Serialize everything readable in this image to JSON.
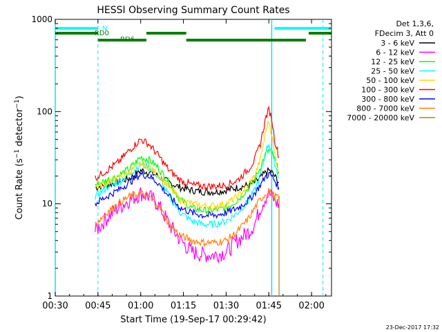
{
  "chart_data": {
    "type": "line",
    "title": "HESSI Observing Summary Count Rates",
    "xlabel": "Start Time (19-Sep-17 00:29:42)",
    "ylabel_main": "Count Rate (s",
    "ylabel_sup1": "−1",
    "ylabel_mid": " detector",
    "ylabel_sup2": "−1",
    "ylabel_end": ")",
    "y_scale": "log",
    "ylim": [
      1,
      1000
    ],
    "xlim_min": [
      30,
      127
    ],
    "x_ticks": [
      {
        "min": 30,
        "label": "00:30"
      },
      {
        "min": 45,
        "label": "00:45"
      },
      {
        "min": 60,
        "label": "01:00"
      },
      {
        "min": 75,
        "label": "01:15"
      },
      {
        "min": 90,
        "label": "01:30"
      },
      {
        "min": 105,
        "label": "01:45"
      },
      {
        "min": 120,
        "label": "02:00"
      }
    ],
    "y_ticks": [
      {
        "val": 1,
        "label": "1"
      },
      {
        "val": 10,
        "label": "10"
      },
      {
        "val": 100,
        "label": "100"
      },
      {
        "val": 1000,
        "label": "1000"
      }
    ],
    "legend_header": [
      "Det 1,3,6,",
      "FDecim 3, Att 0"
    ],
    "series": [
      {
        "name": "3 - 6 keV",
        "color": "#000000",
        "x": [
          44,
          48,
          52,
          56,
          60,
          63,
          66,
          70,
          74,
          78,
          82,
          86,
          90,
          94,
          98,
          100,
          102,
          104,
          105,
          106,
          107,
          108,
          108.5
        ],
        "y": [
          15,
          16,
          17,
          19,
          23,
          22,
          20,
          17,
          15,
          14,
          13.5,
          13.5,
          14,
          15,
          16,
          17,
          19,
          22,
          23,
          22,
          20,
          18,
          17
        ]
      },
      {
        "name": "6 - 12 keV",
        "color": "#ff00ff",
        "x": [
          44,
          48,
          52,
          56,
          60,
          63,
          66,
          70,
          74,
          78,
          82,
          86,
          90,
          94,
          98,
          100,
          102,
          104,
          105,
          106,
          107,
          108,
          108.5
        ],
        "y": [
          5,
          7,
          9,
          11,
          13,
          12,
          10,
          6,
          4,
          3,
          2.8,
          2.8,
          3,
          4,
          5,
          6,
          9,
          12,
          13,
          12,
          11,
          10,
          10
        ]
      },
      {
        "name": "12 - 25 keV",
        "color": "#00ff00",
        "x": [
          44,
          48,
          52,
          56,
          60,
          63,
          66,
          70,
          74,
          78,
          82,
          86,
          90,
          94,
          98,
          100,
          102,
          104,
          105,
          106,
          107,
          108,
          108.5
        ],
        "y": [
          16,
          18,
          20,
          24,
          32,
          30,
          25,
          17,
          11,
          9,
          8.5,
          8.5,
          9,
          11,
          15,
          18,
          25,
          35,
          38,
          36,
          30,
          25,
          22
        ]
      },
      {
        "name": "25 - 50 keV",
        "color": "#00ffff",
        "x": [
          44,
          48,
          52,
          56,
          60,
          63,
          66,
          70,
          74,
          78,
          82,
          86,
          90,
          94,
          98,
          100,
          102,
          104,
          105,
          106,
          107,
          108,
          108.5
        ],
        "y": [
          12,
          15,
          17,
          21,
          27,
          25,
          20,
          12,
          8,
          6.5,
          6,
          6,
          6.5,
          8,
          11,
          14,
          20,
          38,
          45,
          38,
          28,
          22,
          19
        ]
      },
      {
        "name": "50 - 100 keV",
        "color": "#ffd700",
        "x": [
          44,
          48,
          52,
          56,
          60,
          63,
          66,
          70,
          74,
          78,
          82,
          86,
          90,
          94,
          98,
          100,
          102,
          104,
          105,
          106,
          107,
          108,
          108.5
        ],
        "y": [
          15,
          17,
          19,
          22,
          27,
          25,
          21,
          15,
          11,
          10,
          9.5,
          9.5,
          10,
          12,
          16,
          20,
          30,
          62,
          80,
          58,
          35,
          26,
          22
        ]
      },
      {
        "name": "100 - 300 keV",
        "color": "#ff0000",
        "x": [
          44,
          48,
          52,
          56,
          60,
          63,
          66,
          70,
          74,
          78,
          82,
          86,
          90,
          94,
          98,
          100,
          102,
          104,
          105,
          106,
          107,
          108,
          108.5
        ],
        "y": [
          19,
          23,
          28,
          38,
          50,
          44,
          34,
          23,
          18,
          16,
          15.5,
          15.5,
          16,
          18,
          24,
          30,
          45,
          88,
          105,
          85,
          50,
          38,
          32
        ]
      },
      {
        "name": "300 - 800 keV",
        "color": "#0000ff",
        "x": [
          44,
          48,
          52,
          56,
          60,
          63,
          66,
          70,
          74,
          78,
          82,
          86,
          90,
          94,
          98,
          100,
          102,
          104,
          105,
          106,
          107,
          108,
          108.5
        ],
        "y": [
          10,
          12,
          14,
          17,
          21,
          20,
          17,
          12,
          9,
          8,
          7.5,
          7.5,
          8,
          9,
          11,
          13,
          16,
          20,
          21,
          20,
          18,
          16,
          15
        ]
      },
      {
        "name": "800 - 7000 keV",
        "color": "#ff8000",
        "x": [
          44,
          48,
          52,
          56,
          60,
          63,
          66,
          70,
          74,
          78,
          82,
          86,
          90,
          94,
          98,
          100,
          102,
          104,
          105,
          106,
          107,
          108,
          108.5
        ],
        "y": [
          6,
          8,
          10,
          12,
          13,
          12,
          10,
          6,
          4.5,
          4,
          3.8,
          3.8,
          4,
          5,
          7,
          9,
          11,
          13,
          14,
          13,
          12,
          12,
          11
        ]
      },
      {
        "name": "7000 - 20000 keV",
        "color": "#c08000",
        "x": [
          108.5,
          108.6,
          108.6
        ],
        "y": [
          12,
          12,
          1
        ]
      }
    ],
    "mode_bars": [
      {
        "label": "N",
        "color": "#00ffff",
        "row": 1,
        "segments": [
          [
            30,
            45
          ],
          [
            107,
            127
          ]
        ]
      },
      {
        "label": "RD0",
        "color": "#008000",
        "row": 2,
        "segments": [
          [
            30,
            45
          ],
          [
            62,
            76
          ],
          [
            119,
            127
          ]
        ]
      },
      {
        "label": "RD6",
        "color": "#008000",
        "row": 3,
        "segments": [
          [
            45,
            62
          ],
          [
            76,
            118
          ]
        ]
      }
    ],
    "v_lines_solid": [
      30,
      106
    ],
    "v_lines_dashed": [
      45,
      124
    ],
    "footer_date": "23-Dec-2017 17:32"
  }
}
